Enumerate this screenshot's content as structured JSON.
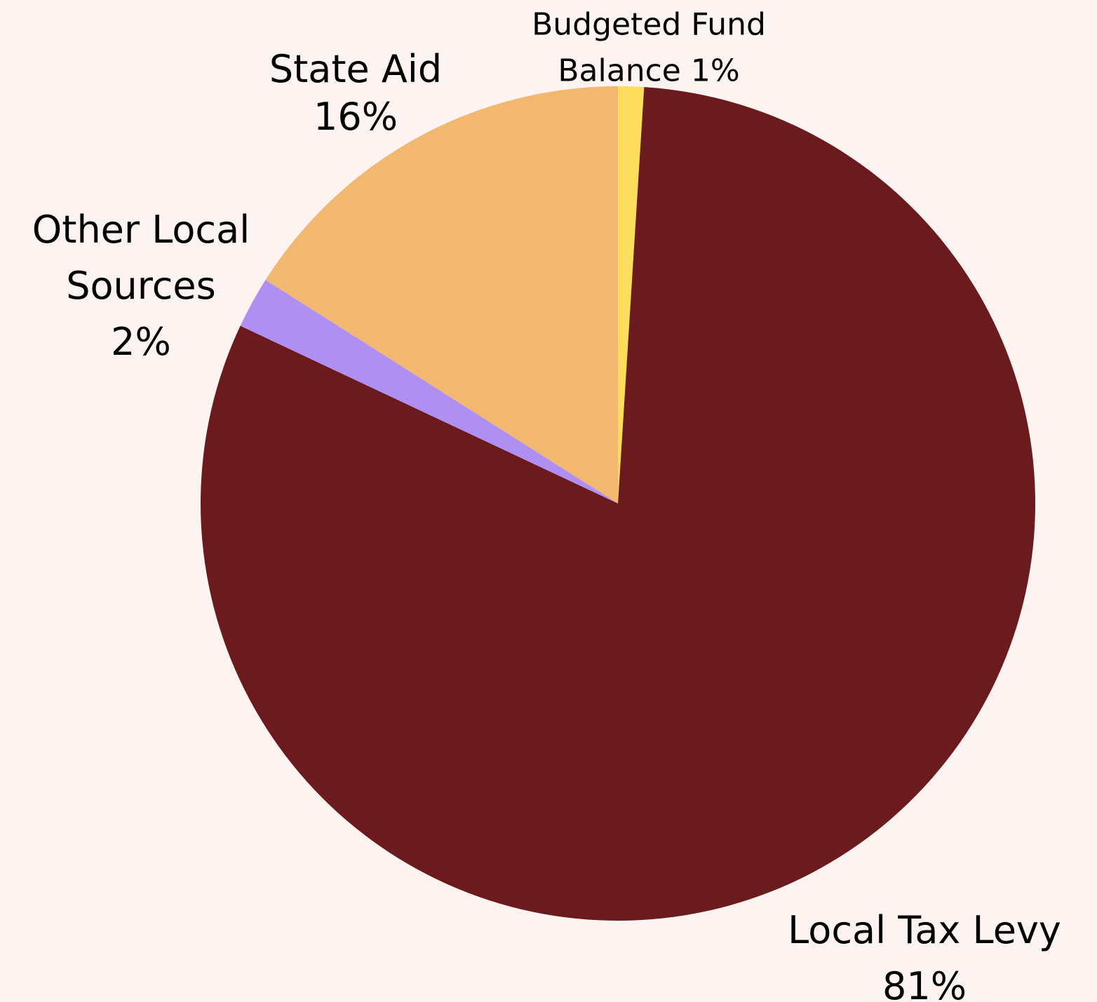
{
  "chart_data": {
    "type": "pie",
    "title": "",
    "slices": [
      {
        "label_lines": [
          "Budgeted Fund",
          "Balance 1%"
        ],
        "value": 1,
        "color": "#fedd5c"
      },
      {
        "label_lines": [
          "Local Tax Levy",
          "81%"
        ],
        "value": 81,
        "color": "#6b1a1e"
      },
      {
        "label_lines": [
          "Other Local",
          "Sources",
          "2%"
        ],
        "value": 2,
        "color": "#b08ff2"
      },
      {
        "label_lines": [
          "State Aid",
          "16%"
        ],
        "value": 16,
        "color": "#f2b870"
      }
    ],
    "start_angle": "12 o'clock",
    "direction": "clockwise",
    "legend": "none"
  },
  "colors": {
    "background": "#fdf4f2",
    "label_text": "#000000"
  }
}
